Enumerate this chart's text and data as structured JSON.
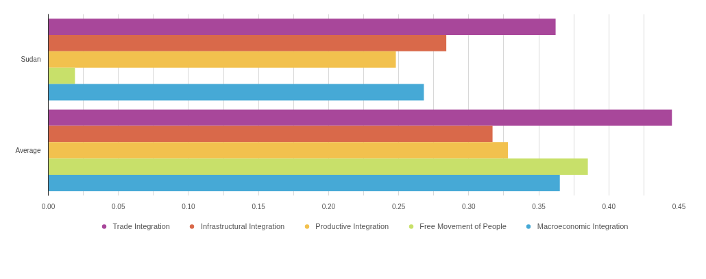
{
  "chart_data": {
    "type": "bar",
    "orientation": "horizontal",
    "categories": [
      "Sudan",
      "Average"
    ],
    "series": [
      {
        "name": "Trade Integration",
        "color": "#a8479a",
        "values": [
          0.362,
          0.445
        ]
      },
      {
        "name": "Infrastructural Integration",
        "color": "#d9694a",
        "values": [
          0.284,
          0.317
        ]
      },
      {
        "name": "Productive Integration",
        "color": "#f2c14e",
        "values": [
          0.248,
          0.328
        ]
      },
      {
        "name": "Free Movement of People",
        "color": "#c8e06a",
        "values": [
          0.019,
          0.385
        ]
      },
      {
        "name": "Macroeconomic Integration",
        "color": "#46a9d6",
        "values": [
          0.268,
          0.365
        ]
      }
    ],
    "xlim": [
      0,
      0.45
    ],
    "xticks": [
      {
        "value": 0,
        "label": "0.00"
      },
      {
        "value": 0.025,
        "label": null
      },
      {
        "value": 0.05,
        "label": "0.05"
      },
      {
        "value": 0.075,
        "label": null
      },
      {
        "value": 0.1,
        "label": "0.10"
      },
      {
        "value": 0.125,
        "label": null
      },
      {
        "value": 0.15,
        "label": "0.15"
      },
      {
        "value": 0.175,
        "label": null
      },
      {
        "value": 0.2,
        "label": "0.20"
      },
      {
        "value": 0.225,
        "label": null
      },
      {
        "value": 0.25,
        "label": "0.25"
      },
      {
        "value": 0.275,
        "label": null
      },
      {
        "value": 0.3,
        "label": "0.30"
      },
      {
        "value": 0.325,
        "label": null
      },
      {
        "value": 0.35,
        "label": "0.35"
      },
      {
        "value": 0.375,
        "label": null
      },
      {
        "value": 0.4,
        "label": "0.40"
      },
      {
        "value": 0.425,
        "label": null
      },
      {
        "value": 0.45,
        "label": "0.45"
      }
    ],
    "grid": "x",
    "legend": "bottom"
  }
}
